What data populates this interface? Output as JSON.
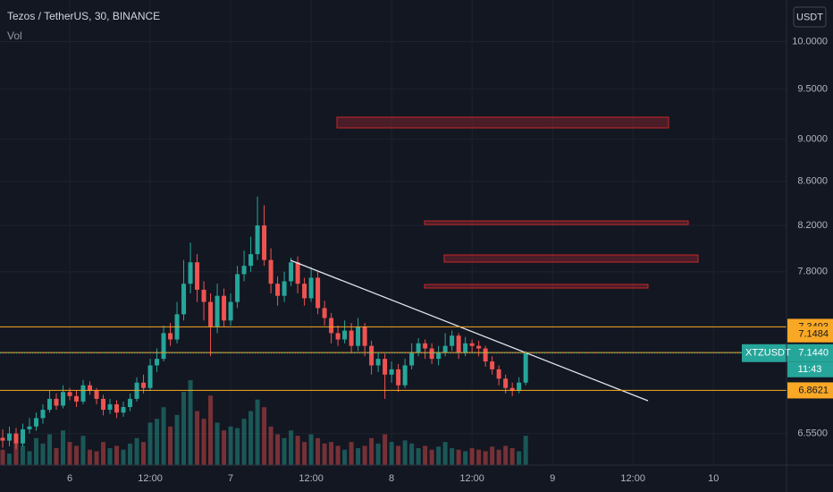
{
  "chart_data": {
    "type": "candlestick",
    "title": "Tezos / TetherUS, 30, BINANCE",
    "volume_label": "Vol",
    "currency_button": "USDT",
    "log_scale": true,
    "grid": true,
    "up_color": "#26a69a",
    "down_color": "#ef5350",
    "x": [
      -10,
      -9,
      -8,
      -7,
      -6,
      -5,
      -4,
      -3,
      -2,
      -1,
      0,
      1,
      2,
      3,
      4,
      5,
      6,
      7,
      8,
      9,
      10,
      11,
      12,
      13,
      14,
      15,
      16,
      17,
      18,
      19,
      20,
      21,
      22,
      23,
      24,
      25,
      26,
      27,
      28,
      29,
      30,
      31,
      32,
      33,
      34,
      35,
      36,
      37,
      38,
      39,
      40,
      41,
      42,
      43,
      44,
      45,
      46,
      47,
      48,
      49,
      50,
      51,
      52,
      53,
      54,
      55,
      56,
      57,
      58,
      59,
      60,
      61,
      62,
      63,
      64,
      65,
      66,
      67,
      68
    ],
    "open": [
      6.52,
      6.5,
      6.55,
      6.48,
      6.58,
      6.6,
      6.66,
      6.72,
      6.8,
      6.75,
      6.85,
      6.82,
      6.78,
      6.9,
      6.86,
      6.8,
      6.72,
      6.76,
      6.7,
      6.74,
      6.8,
      6.92,
      6.88,
      7.05,
      7.1,
      7.3,
      7.25,
      7.45,
      7.7,
      7.88,
      7.65,
      7.55,
      7.35,
      7.6,
      7.4,
      7.55,
      7.78,
      7.85,
      7.95,
      8.2,
      7.9,
      7.7,
      7.6,
      7.72,
      7.88,
      7.7,
      7.58,
      7.75,
      7.5,
      7.42,
      7.3,
      7.25,
      7.32,
      7.2,
      7.35,
      7.2,
      7.05,
      7.1,
      6.98,
      7.02,
      6.9,
      7.05,
      7.15,
      7.22,
      7.18,
      7.1,
      7.15,
      7.2,
      7.28,
      7.15,
      7.22,
      7.2,
      7.18,
      7.08,
      7.02,
      6.95,
      6.88,
      6.86,
      6.92
    ],
    "high": [
      6.58,
      6.6,
      6.59,
      6.62,
      6.66,
      6.7,
      6.76,
      6.86,
      6.84,
      6.9,
      6.88,
      6.86,
      6.94,
      6.93,
      6.88,
      6.83,
      6.8,
      6.79,
      6.78,
      6.84,
      6.96,
      6.98,
      7.1,
      7.18,
      7.36,
      7.38,
      7.55,
      7.9,
      8.05,
      7.95,
      7.72,
      7.62,
      7.7,
      7.66,
      7.62,
      7.85,
      7.98,
      8.1,
      8.46,
      8.38,
      8.0,
      7.76,
      7.8,
      7.92,
      7.93,
      7.75,
      7.84,
      7.8,
      7.56,
      7.46,
      7.36,
      7.4,
      7.38,
      7.42,
      7.38,
      7.24,
      7.15,
      7.14,
      7.08,
      7.06,
      7.1,
      7.22,
      7.26,
      7.25,
      7.22,
      7.2,
      7.3,
      7.32,
      7.3,
      7.27,
      7.25,
      7.24,
      7.2,
      7.12,
      7.05,
      6.98,
      6.92,
      6.96,
      7.16
    ],
    "low": [
      6.45,
      6.46,
      6.44,
      6.46,
      6.55,
      6.57,
      6.62,
      6.7,
      6.72,
      6.73,
      6.79,
      6.74,
      6.76,
      6.83,
      6.76,
      6.68,
      6.69,
      6.66,
      6.67,
      6.71,
      6.78,
      6.84,
      6.86,
      7.0,
      7.08,
      7.2,
      7.22,
      7.4,
      7.62,
      7.55,
      7.4,
      7.12,
      7.3,
      7.35,
      7.36,
      7.5,
      7.72,
      7.8,
      7.9,
      7.85,
      7.62,
      7.52,
      7.55,
      7.68,
      7.62,
      7.52,
      7.55,
      7.45,
      7.36,
      7.22,
      7.2,
      7.22,
      7.15,
      7.16,
      7.12,
      6.98,
      7.0,
      6.8,
      6.92,
      6.85,
      6.88,
      7.02,
      7.12,
      7.1,
      7.06,
      7.05,
      7.12,
      7.16,
      7.1,
      7.12,
      7.15,
      7.12,
      7.04,
      6.98,
      6.9,
      6.84,
      6.82,
      6.84,
      6.9
    ],
    "close": [
      6.5,
      6.55,
      6.48,
      6.58,
      6.6,
      6.66,
      6.72,
      6.8,
      6.75,
      6.85,
      6.82,
      6.78,
      6.9,
      6.86,
      6.8,
      6.72,
      6.76,
      6.7,
      6.74,
      6.8,
      6.92,
      6.88,
      7.05,
      7.1,
      7.3,
      7.25,
      7.45,
      7.7,
      7.88,
      7.65,
      7.55,
      7.35,
      7.6,
      7.4,
      7.55,
      7.78,
      7.85,
      7.95,
      8.2,
      7.9,
      7.7,
      7.6,
      7.72,
      7.88,
      7.7,
      7.58,
      7.75,
      7.5,
      7.42,
      7.3,
      7.25,
      7.32,
      7.2,
      7.35,
      7.2,
      7.05,
      7.1,
      6.98,
      7.02,
      6.9,
      7.05,
      7.15,
      7.22,
      7.18,
      7.1,
      7.15,
      7.2,
      7.28,
      7.15,
      7.22,
      7.2,
      7.18,
      7.08,
      7.02,
      6.95,
      6.88,
      6.86,
      6.92,
      7.144
    ],
    "volume": [
      20,
      15,
      30,
      25,
      18,
      35,
      28,
      40,
      22,
      45,
      30,
      25,
      38,
      20,
      18,
      30,
      22,
      25,
      20,
      28,
      35,
      30,
      55,
      60,
      75,
      50,
      65,
      95,
      110,
      70,
      60,
      90,
      55,
      45,
      50,
      48,
      60,
      70,
      85,
      75,
      50,
      40,
      35,
      45,
      38,
      30,
      40,
      35,
      28,
      30,
      25,
      20,
      30,
      22,
      25,
      35,
      28,
      40,
      30,
      25,
      32,
      28,
      22,
      25,
      20,
      24,
      30,
      22,
      20,
      18,
      22,
      20,
      18,
      24,
      20,
      25,
      22,
      18,
      38
    ],
    "xlim": [
      -10.4,
      106.9
    ],
    "ylim": [
      6.33,
      10.46
    ],
    "xticks": [
      {
        "value": 0,
        "label": "6"
      },
      {
        "value": 12,
        "label": "12:00"
      },
      {
        "value": 24,
        "label": "7"
      },
      {
        "value": 36,
        "label": "12:00"
      },
      {
        "value": 48,
        "label": "8"
      },
      {
        "value": 60,
        "label": "12:00"
      },
      {
        "value": 72,
        "label": "9"
      },
      {
        "value": 84,
        "label": "12:00"
      },
      {
        "value": 96,
        "label": "10"
      }
    ],
    "yticks": [
      {
        "value": 6.55,
        "label": "6.5500"
      },
      {
        "value": 7.8,
        "label": "7.8000"
      },
      {
        "value": 8.2,
        "label": "8.2000"
      },
      {
        "value": 8.6,
        "label": "8.6000"
      },
      {
        "value": 9,
        "label": "9.0000"
      },
      {
        "value": 9.5,
        "label": "9.5000"
      },
      {
        "value": 10,
        "label": "10.0000"
      }
    ],
    "price_lines": [
      7.3493,
      7.1484,
      6.8621
    ],
    "price_line_color": "#f9a825",
    "current_price": {
      "symbol": "XTZUSDT",
      "value": 7.144,
      "label": "7.1440",
      "countdown": "11:43"
    }
  }
}
